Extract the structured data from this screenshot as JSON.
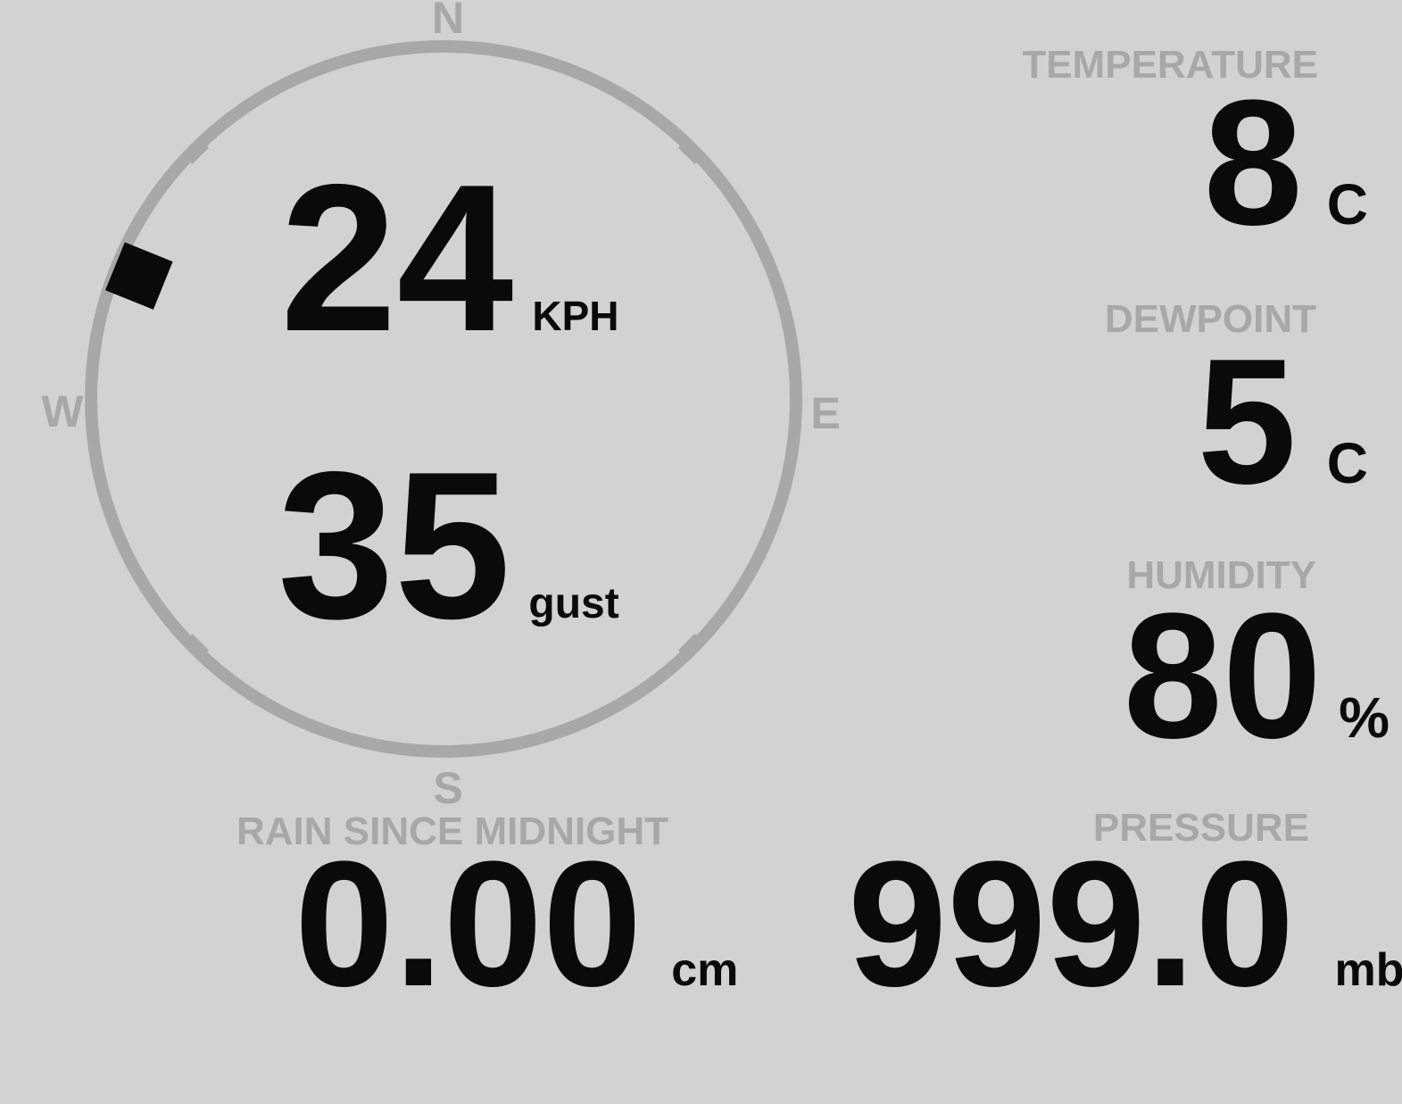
{
  "colors": {
    "background": "#d2d2d2",
    "muted_gray": "#a8a8a8",
    "ink_black": "#0a0a0a"
  },
  "compass": {
    "cardinals": {
      "north": "N",
      "east": "E",
      "south": "S",
      "west": "W"
    },
    "wind_speed": {
      "value": "24",
      "unit": "KPH"
    },
    "wind_gust": {
      "value": "35",
      "unit": "gust"
    },
    "wind_direction_deg": 292
  },
  "metrics": {
    "temperature": {
      "label": "TEMPERATURE",
      "value": "8",
      "unit": "C"
    },
    "dewpoint": {
      "label": "DEWPOINT",
      "value": "5",
      "unit": "C"
    },
    "humidity": {
      "label": "HUMIDITY",
      "value": "80",
      "unit": "%"
    },
    "rain": {
      "label": "RAIN SINCE MIDNIGHT",
      "value": "0.00",
      "unit": "cm"
    },
    "pressure": {
      "label": "PRESSURE",
      "value": "999.0",
      "unit": "mb"
    }
  }
}
